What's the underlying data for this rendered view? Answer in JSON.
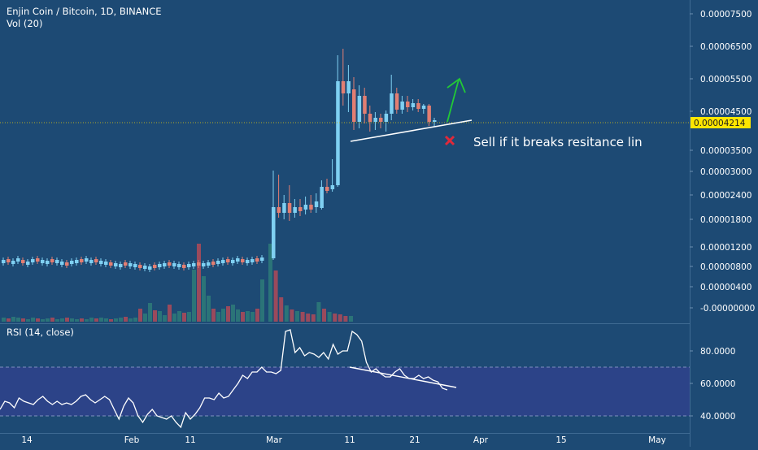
{
  "header": {
    "symbol": "Enjin Coin / Bitcoin, 1D, BINANCE",
    "vol_label": "Vol (20)",
    "rsi_label": "RSI (14, close)"
  },
  "annotation": {
    "text": "Sell if it breaks resitance lin"
  },
  "colors": {
    "background": "#1d4a74",
    "rsi_band": "#2c4388",
    "up": "#7fd0f2",
    "down": "#e27e72",
    "vol_up": "#2b7478",
    "vol_down": "#9a4a5c",
    "price_line": "#b7ad24",
    "arrow": "#22c936",
    "cross": "#e0293a"
  },
  "chart_data": [
    {
      "type": "candlestick",
      "title": "Enjin Coin / Bitcoin, 1D, BINANCE",
      "y_ticks": [
        "0.00007500",
        "0.00006500",
        "0.00005500",
        "0.00004500",
        "0.00003500",
        "0.00003000",
        "0.00002400",
        "0.00001800",
        "0.00001200",
        "0.00000800",
        "0.00000400",
        "-0.00000000"
      ],
      "y_scale": "non-linear (tick labels as printed)",
      "x_ticks": [
        "14",
        "Feb",
        "11",
        "Mar",
        "11",
        "21",
        "Apr",
        "15",
        "May"
      ],
      "last_price": "0.00004214",
      "series": [
        {
          "name": "Vol (20)",
          "note": "volume histogram, unlabelled",
          "values": [
            0.5,
            0.4,
            0.6,
            0.5,
            0.4,
            0.3,
            0.5,
            0.4,
            0.3,
            0.4,
            0.5,
            0.3,
            0.4,
            0.5,
            0.4,
            0.3,
            0.4,
            0.3,
            0.5,
            0.4,
            0.5,
            0.4,
            0.3,
            0.4,
            0.5,
            0.6,
            0.4,
            0.5,
            1.6,
            1.0,
            2.3,
            1.4,
            1.3,
            0.8,
            2.1,
            1.0,
            1.3,
            1.1,
            1.2,
            6.4,
            9.6,
            5.6,
            3.2,
            1.6,
            1.2,
            1.6,
            1.9,
            2.1,
            1.5,
            1.2,
            1.3,
            1.2,
            1.6,
            5.2,
            9.6,
            6.3,
            3.0,
            2.0,
            1.5,
            1.3,
            1.2,
            1.0,
            0.9,
            2.4,
            1.6,
            1.2,
            1.0,
            0.9,
            0.7,
            0.7
          ]
        }
      ]
    },
    {
      "type": "line",
      "title": "RSI (14, close)",
      "y_ticks": [
        "80.0000",
        "60.0000",
        "40.0000"
      ],
      "ylim": [
        30,
        96
      ],
      "band": [
        40,
        70
      ],
      "x_ticks": [
        "14",
        "Feb",
        "11",
        "Mar",
        "11",
        "21",
        "Apr",
        "15",
        "May"
      ],
      "series": [
        {
          "name": "RSI (14, close)",
          "values": [
            44,
            49,
            48,
            45,
            51,
            49,
            48,
            47,
            50,
            52,
            49,
            47,
            49,
            47,
            48,
            47,
            49,
            52,
            53,
            50,
            48,
            50,
            52,
            50,
            44,
            38,
            46,
            51,
            48,
            40,
            36,
            41,
            44,
            40,
            39,
            38,
            40,
            36,
            33,
            42,
            38,
            41,
            45,
            51,
            51,
            50,
            54,
            51,
            52,
            56,
            60,
            65,
            63,
            67,
            67,
            70,
            67,
            67,
            66,
            68,
            92,
            93,
            79,
            82,
            77,
            79,
            78,
            76,
            79,
            75,
            84,
            78,
            80,
            80,
            92,
            90,
            86,
            73,
            67,
            69,
            66,
            64,
            64,
            67,
            69,
            65,
            63,
            63,
            65,
            63,
            64,
            62,
            61,
            57,
            56
          ]
        }
      ]
    }
  ]
}
